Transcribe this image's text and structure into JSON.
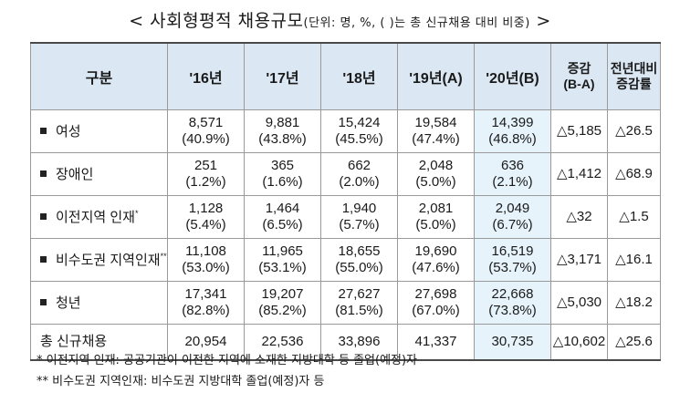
{
  "title": {
    "main": "< 사회형평적  채용규모",
    "unit": "(단위: 명, %, (  )는 총 신규채용 대비 비중)",
    "close": ">"
  },
  "headers": {
    "category": "구분",
    "y16": "'16년",
    "y17": "'17년",
    "y18": "'18년",
    "y19": "'19년(A)",
    "y20": "'20년(B)",
    "change_line1": "증감",
    "change_line2": "(B-A)",
    "rate_line1": "전년대비",
    "rate_line2": "증감률"
  },
  "rows": [
    {
      "label": "여성",
      "sup": "",
      "values": [
        "8,571",
        "9,881",
        "15,424",
        "19,584",
        "14,399"
      ],
      "shares": [
        "(40.9%)",
        "(43.8%)",
        "(45.5%)",
        "(47.4%)",
        "(46.8%)"
      ],
      "change": "△5,185",
      "rate": "△26.5"
    },
    {
      "label": "장애인",
      "sup": "",
      "values": [
        "251",
        "365",
        "662",
        "2,048",
        "636"
      ],
      "shares": [
        "(1.2%)",
        "(1.6%)",
        "(2.0%)",
        "(5.0%)",
        "(2.1%)"
      ],
      "change": "△1,412",
      "rate": "△68.9"
    },
    {
      "label": "이전지역 인재",
      "sup": "*",
      "values": [
        "1,128",
        "1,464",
        "1,940",
        "2,081",
        "2,049"
      ],
      "shares": [
        "(5.4%)",
        "(6.5%)",
        "(5.7%)",
        "(5.0%)",
        "(6.7%)"
      ],
      "change": "△32",
      "rate": "△1.5"
    },
    {
      "label": "비수도권 지역인재",
      "sup": "**",
      "values": [
        "11,108",
        "11,965",
        "18,655",
        "19,690",
        "16,519"
      ],
      "shares": [
        "(53.0%)",
        "(53.1%)",
        "(55.0%)",
        "(47.6%)",
        "(53.7%)"
      ],
      "change": "△3,171",
      "rate": "△16.1"
    },
    {
      "label": "청년",
      "sup": "",
      "values": [
        "17,341",
        "19,207",
        "27,627",
        "27,698",
        "22,668"
      ],
      "shares": [
        "(82.8%)",
        "(85.2%)",
        "(81.5%)",
        "(67.0%)",
        "(73.8%)"
      ],
      "change": "△5,030",
      "rate": "△18.2"
    }
  ],
  "total": {
    "label": "총 신규채용",
    "values": [
      "20,954",
      "22,536",
      "33,896",
      "41,337",
      "30,735"
    ],
    "change": "△10,602",
    "rate": "△25.6"
  },
  "notes": [
    "* 이전지역 인재: 공공기관이 이전한 지역에 소재한 지방대학 등 졸업(예정)자",
    "** 비수도권 지역인재: 비수도권 지방대학 졸업(예정)자 등"
  ]
}
